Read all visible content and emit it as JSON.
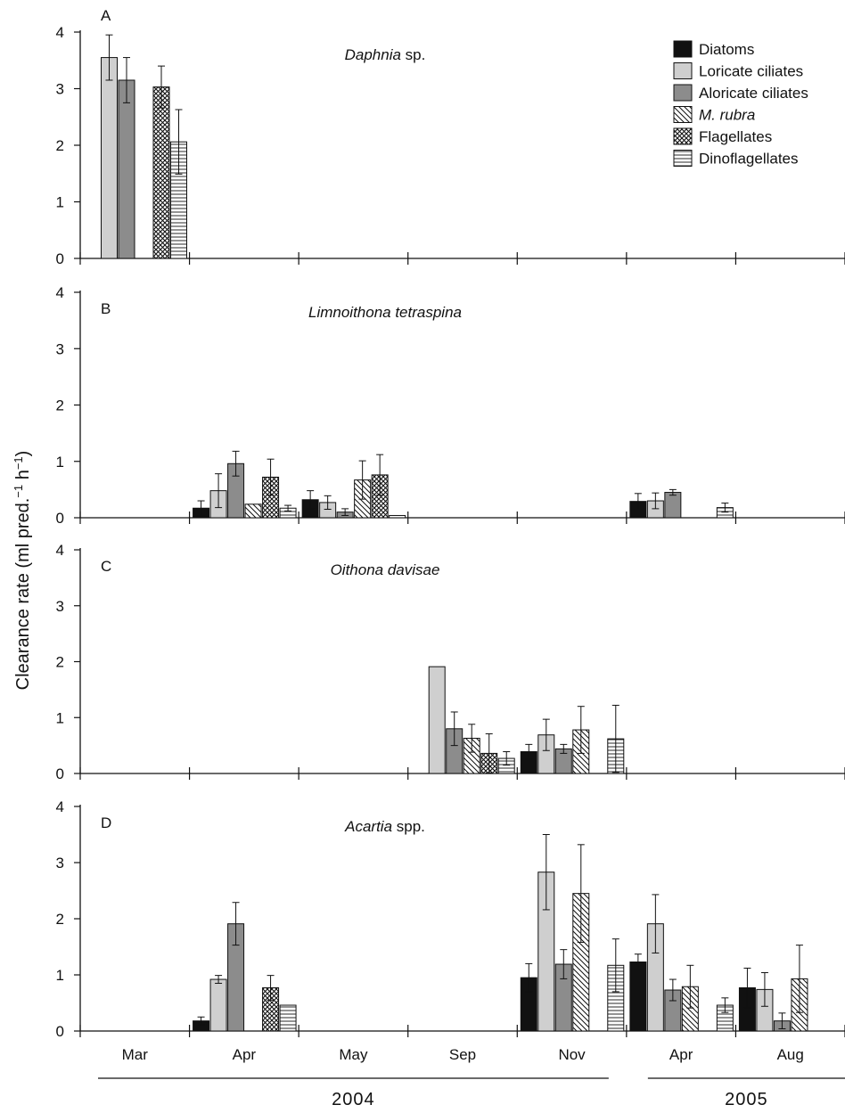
{
  "chart_data": {
    "type": "bar",
    "ylabel": "Clearance rate (ml pred.−1 h−1)",
    "ylabel_parts": {
      "main": "Clearance rate (ml pred.",
      "sup1": "−1",
      "mid": " h",
      "sup2": "−1",
      "end": ")"
    },
    "ylim": [
      0,
      4
    ],
    "yticks": [
      "0",
      "1",
      "2",
      "3",
      "4"
    ],
    "categories": [
      "Mar",
      "Apr",
      "May",
      "Sep",
      "Nov",
      "Apr",
      "Aug"
    ],
    "years": [
      {
        "label": "2004",
        "from": 0,
        "to": 4
      },
      {
        "label": "2005",
        "from": 5,
        "to": 6
      }
    ],
    "series": [
      {
        "name": "Diatoms",
        "color": "#111111",
        "pattern": "solid-black"
      },
      {
        "name": "Loricate ciliates",
        "color": "#cfcfcf",
        "pattern": "solid-light"
      },
      {
        "name": "Aloricate ciliates",
        "color": "#8c8c8c",
        "pattern": "solid-dark"
      },
      {
        "name": "M. rubra",
        "italic": true,
        "color": "#ffffff",
        "pattern": "diagonal"
      },
      {
        "name": "Flagellates",
        "color": "#ffffff",
        "pattern": "crosshatch"
      },
      {
        "name": "Dinoflagellates",
        "color": "#ffffff",
        "pattern": "horizontal"
      }
    ],
    "panels": [
      {
        "letter": "A",
        "title_italic": "Daphnia",
        "title_rest": " sp.",
        "values": [
          [
            null,
            3.55,
            3.15,
            null,
            3.03,
            2.06
          ],
          null,
          null,
          null,
          null,
          null,
          null
        ],
        "errors": [
          [
            null,
            0.4,
            0.4,
            null,
            0.37,
            0.57
          ],
          null,
          null,
          null,
          null,
          null,
          null
        ]
      },
      {
        "letter": "B",
        "title_italic": "Limnoithona tetraspina",
        "title_rest": "",
        "values": [
          null,
          [
            0.17,
            0.48,
            0.96,
            0.24,
            0.72,
            0.17
          ],
          [
            0.32,
            0.27,
            0.1,
            0.67,
            0.76,
            0.04
          ],
          null,
          null,
          [
            0.29,
            0.3,
            0.45,
            null,
            null,
            0.18
          ],
          null
        ],
        "errors": [
          null,
          [
            0.13,
            0.3,
            0.22,
            0,
            0.32,
            0.05
          ],
          [
            0.16,
            0.12,
            0.06,
            0.34,
            0.36,
            0
          ],
          null,
          null,
          [
            0.14,
            0.14,
            0.05,
            null,
            null,
            0.08
          ],
          null
        ]
      },
      {
        "letter": "C",
        "title_italic": "Oithona davisae",
        "title_rest": "",
        "values": [
          null,
          null,
          null,
          [
            null,
            1.91,
            0.8,
            0.63,
            0.36,
            0.27
          ],
          [
            0.39,
            0.69,
            0.44,
            0.78,
            null,
            0.62
          ],
          null,
          null
        ],
        "errors": [
          null,
          null,
          null,
          [
            null,
            0,
            0.3,
            0.25,
            0.35,
            0.12
          ],
          [
            0.13,
            0.28,
            0.08,
            0.42,
            null,
            0.6
          ],
          null,
          null
        ]
      },
      {
        "letter": "D",
        "title_italic": "Acartia",
        "title_rest": " spp.",
        "values": [
          null,
          [
            0.18,
            0.92,
            1.91,
            null,
            0.77,
            0.46
          ],
          null,
          null,
          [
            0.95,
            2.83,
            1.19,
            2.45,
            null,
            1.17
          ],
          [
            1.23,
            1.91,
            0.73,
            0.79,
            null,
            0.46
          ],
          [
            0.77,
            0.74,
            0.18,
            0.93,
            null,
            null
          ]
        ],
        "errors": [
          null,
          [
            0.07,
            0.07,
            0.38,
            null,
            0.22,
            0
          ],
          null,
          null,
          [
            0.25,
            0.67,
            0.26,
            0.87,
            null,
            0.47
          ],
          [
            0.14,
            0.52,
            0.19,
            0.38,
            null,
            0.13
          ],
          [
            0.35,
            0.3,
            0.14,
            0.6,
            null,
            null
          ]
        ]
      }
    ]
  }
}
